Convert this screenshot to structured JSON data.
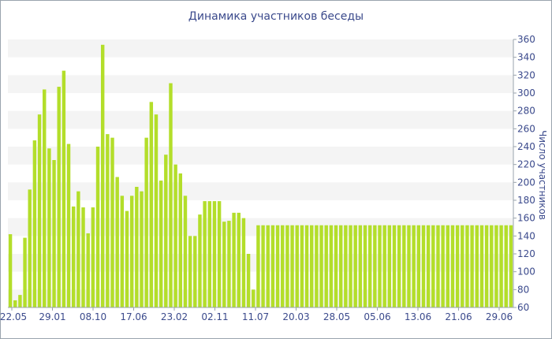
{
  "chart_data": {
    "type": "bar",
    "title": "Динамика участников беседы",
    "ylabel": "Число участников",
    "xlabel": "",
    "ylim": [
      60,
      360
    ],
    "y_ticks": [
      60,
      80,
      100,
      120,
      140,
      160,
      180,
      200,
      220,
      240,
      260,
      280,
      300,
      320,
      340,
      360
    ],
    "x_tick_labels": [
      "22.05",
      "29.01",
      "08.10",
      "17.06",
      "23.02",
      "02.11",
      "11.07",
      "20.03",
      "28.05",
      "05.06",
      "13.06",
      "21.06",
      "29.06"
    ],
    "bar_color": "#b3de2a",
    "grid": "horizontal bands",
    "values": [
      142,
      68,
      74,
      138,
      192,
      247,
      276,
      304,
      238,
      225,
      307,
      325,
      243,
      173,
      190,
      172,
      143,
      172,
      240,
      354,
      254,
      250,
      206,
      185,
      168,
      185,
      195,
      190,
      250,
      290,
      276,
      202,
      231,
      311,
      220,
      210,
      185,
      140,
      140,
      164,
      179,
      179,
      179,
      179,
      156,
      157,
      166,
      166,
      160,
      120,
      80,
      152,
      152,
      152,
      152,
      152,
      152,
      152,
      152,
      152,
      152,
      152,
      152,
      152,
      152,
      152,
      152,
      152,
      152,
      152,
      152,
      152,
      152,
      152,
      152,
      152,
      152,
      152,
      152,
      152,
      152,
      152,
      152,
      152,
      152,
      152,
      152,
      152,
      152,
      152,
      152,
      152,
      152,
      152,
      152,
      152,
      152,
      152,
      152,
      152,
      152,
      152,
      152,
      152
    ]
  }
}
